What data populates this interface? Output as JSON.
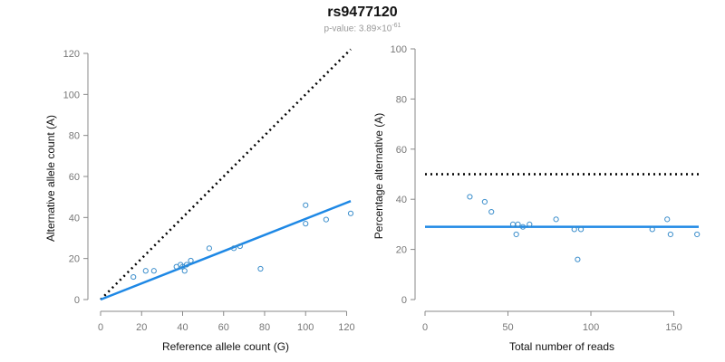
{
  "title": "rs9477120",
  "subtitle": {
    "prefix": "p-value: 3.89",
    "times": "×",
    "base": "10",
    "exponent": "-61"
  },
  "colors": {
    "points": "#3d8fcc",
    "fit": "#1e88e5",
    "reference": "#000000",
    "axis": "#888888"
  },
  "chart_data": [
    {
      "type": "scatter",
      "xlabel": "Reference allele count (G)",
      "ylabel": "Alternative allele count (A)",
      "xlim": [
        0,
        122
      ],
      "ylim": [
        0,
        120
      ],
      "xticks": [
        0,
        20,
        40,
        60,
        80,
        100,
        120
      ],
      "yticks": [
        0,
        20,
        40,
        60,
        80,
        100,
        120
      ],
      "points": [
        {
          "x": 16,
          "y": 11
        },
        {
          "x": 22,
          "y": 14
        },
        {
          "x": 26,
          "y": 14
        },
        {
          "x": 37,
          "y": 16
        },
        {
          "x": 39,
          "y": 17
        },
        {
          "x": 40,
          "y": 16
        },
        {
          "x": 41,
          "y": 14
        },
        {
          "x": 42,
          "y": 17
        },
        {
          "x": 44,
          "y": 19
        },
        {
          "x": 53,
          "y": 25
        },
        {
          "x": 65,
          "y": 25
        },
        {
          "x": 68,
          "y": 26
        },
        {
          "x": 78,
          "y": 15
        },
        {
          "x": 100,
          "y": 46
        },
        {
          "x": 100,
          "y": 37
        },
        {
          "x": 110,
          "y": 39
        },
        {
          "x": 122,
          "y": 42
        }
      ],
      "fit_line": [
        [
          0,
          0
        ],
        [
          122,
          48
        ]
      ],
      "reference_line": [
        [
          0,
          0
        ],
        [
          122,
          122
        ]
      ],
      "grid": false
    },
    {
      "type": "scatter",
      "xlabel": "Total number of reads",
      "ylabel": "Percentage alternative (A)",
      "xlim": [
        0,
        165
      ],
      "ylim": [
        0,
        100
      ],
      "xticks": [
        0,
        50,
        100,
        150
      ],
      "yticks": [
        0,
        20,
        40,
        60,
        80,
        100
      ],
      "points": [
        {
          "x": 27,
          "y": 41
        },
        {
          "x": 36,
          "y": 39
        },
        {
          "x": 40,
          "y": 35
        },
        {
          "x": 53,
          "y": 30
        },
        {
          "x": 55,
          "y": 26
        },
        {
          "x": 56,
          "y": 30
        },
        {
          "x": 59,
          "y": 29
        },
        {
          "x": 63,
          "y": 30
        },
        {
          "x": 79,
          "y": 32
        },
        {
          "x": 90,
          "y": 28
        },
        {
          "x": 92,
          "y": 16
        },
        {
          "x": 94,
          "y": 28
        },
        {
          "x": 137,
          "y": 28
        },
        {
          "x": 146,
          "y": 32
        },
        {
          "x": 148,
          "y": 26
        },
        {
          "x": 164,
          "y": 26
        }
      ],
      "fit_line": [
        [
          0,
          29
        ],
        [
          165,
          29
        ]
      ],
      "reference_line": [
        [
          0,
          50
        ],
        [
          165,
          50
        ]
      ],
      "grid": false
    }
  ]
}
